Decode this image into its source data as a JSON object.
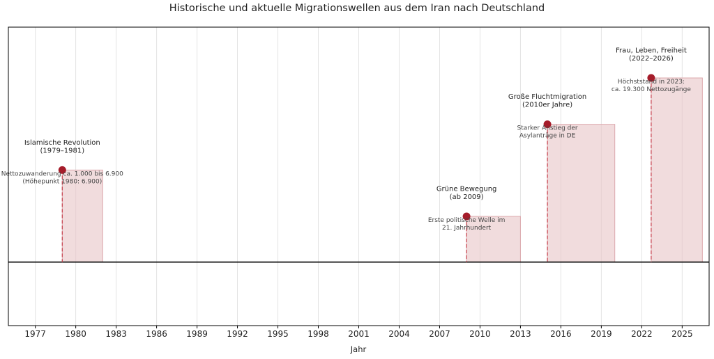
{
  "chart_data": {
    "type": "timeline",
    "title": "Historische und aktuelle Migrationswellen aus dem Iran nach Deutschland",
    "xlabel": "Jahr",
    "xlim": [
      1975,
      2027
    ],
    "ylim": [
      -1,
      3.7
    ],
    "xticks": [
      1977,
      1980,
      1983,
      1986,
      1989,
      1992,
      1995,
      1998,
      2001,
      2004,
      2007,
      2010,
      2013,
      2016,
      2019,
      2022,
      2025
    ],
    "grid": "vertical",
    "events": [
      {
        "title_lines": [
          "Islamische Revolution",
          "(1979–1981)"
        ],
        "desc_lines": [
          "Nettozuwanderung ca. 1.000 bis 6.900",
          "(Höhepunkt 1980: 6.900)"
        ],
        "start": 1979.0,
        "end": 1982.0,
        "level": 1.45
      },
      {
        "title_lines": [
          "Grüne Bewegung",
          "(ab 2009)"
        ],
        "desc_lines": [
          "Erste politische Welle im",
          "21. Jahrhundert"
        ],
        "start": 2009.0,
        "end": 2013.0,
        "level": 0.72
      },
      {
        "title_lines": [
          "Große Fluchtmigration",
          "(2010er Jahre)"
        ],
        "desc_lines": [
          "Starker Anstieg der",
          "Asylanträge in DE"
        ],
        "start": 2015.0,
        "end": 2020.0,
        "level": 2.17
      },
      {
        "title_lines": [
          "Frau, Leben, Freiheit",
          "(2022–2026)"
        ],
        "desc_lines": [
          "Höchststand in 2023:",
          "ca. 19.300 Nettozugänge"
        ],
        "start": 2022.7,
        "end": 2026.5,
        "level": 2.9
      }
    ],
    "colors": {
      "band_fill": "#e8c4c7",
      "band_stroke": "#dca8ad",
      "marker": "#a51c2a",
      "dashed_line": "#c94a55",
      "baseline": "#000000",
      "grid": "#e3e3e3"
    }
  }
}
